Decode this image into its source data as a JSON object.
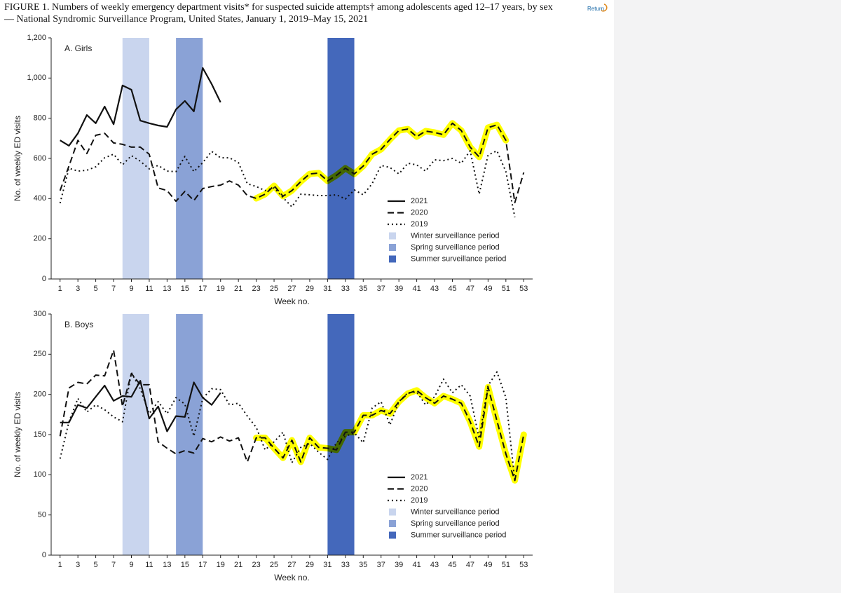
{
  "header": {
    "title": [
      "FIGURE 1. Numbers of weekly emergency department visits* for suspected suicide attempts† among adolescents aged 12–17 years, by sex",
      "— National Syndromic Surveillance Program, United States, January 1, 2019–May 15, 2021"
    ],
    "return_link": "Return"
  },
  "chart_data": [
    {
      "type": "line",
      "title": "A. Girls",
      "xlabel": "Week no.",
      "ylabel": "No. of weekly ED visits",
      "x": [
        1,
        2,
        3,
        4,
        5,
        6,
        7,
        8,
        9,
        10,
        11,
        12,
        13,
        14,
        15,
        16,
        17,
        18,
        19,
        20,
        21,
        22,
        23,
        24,
        25,
        26,
        27,
        28,
        29,
        30,
        31,
        32,
        33,
        34,
        35,
        36,
        37,
        38,
        39,
        40,
        41,
        42,
        43,
        44,
        45,
        46,
        47,
        48,
        49,
        50,
        51,
        52,
        53
      ],
      "xlim": [
        0,
        54
      ],
      "xticks": [
        1,
        3,
        5,
        7,
        9,
        11,
        13,
        15,
        17,
        19,
        21,
        23,
        25,
        27,
        29,
        31,
        33,
        35,
        37,
        39,
        41,
        43,
        45,
        47,
        49,
        51,
        53
      ],
      "ylim": [
        0,
        1200
      ],
      "yticks": [
        0,
        200,
        400,
        600,
        800,
        {
          "value": 1000,
          "label": "1,000"
        },
        {
          "value": 1200,
          "label": "1,200"
        }
      ],
      "bands": [
        {
          "name": "Winter surveillance period",
          "from": 8,
          "to": 11,
          "color": "#c9d5ee"
        },
        {
          "name": "Spring surveillance period",
          "from": 14,
          "to": 17,
          "color": "#8aa2d6"
        },
        {
          "name": "Summer surveillance period",
          "from": 31,
          "to": 34,
          "color": "#4468bb"
        }
      ],
      "series": [
        {
          "name": "2021",
          "color": "#111111",
          "dash": "solid",
          "values": [
            690,
            663,
            725,
            816,
            775,
            858,
            770,
            963,
            942,
            788,
            775,
            764,
            757,
            844,
            886,
            834,
            1050,
            970,
            879,
            null,
            null,
            null,
            null,
            null,
            null,
            null,
            null,
            null,
            null,
            null,
            null,
            null,
            null,
            null,
            null,
            null,
            null,
            null,
            null,
            null,
            null,
            null,
            null,
            null,
            null,
            null,
            null,
            null,
            null,
            null,
            null,
            null,
            null
          ]
        },
        {
          "name": "2020",
          "color": "#111111",
          "dash": "dashed",
          "highlight": {
            "from": 23,
            "to": 51,
            "color": "#ffff00"
          },
          "values": [
            440,
            562,
            690,
            624,
            715,
            725,
            677,
            670,
            656,
            656,
            621,
            453,
            440,
            387,
            436,
            390,
            450,
            460,
            467,
            488,
            467,
            415,
            401,
            422,
            464,
            412,
            440,
            485,
            523,
            527,
            488,
            516,
            551,
            523,
            562,
            621,
            645,
            694,
            739,
            746,
            708,
            736,
            729,
            718,
            775,
            739,
            656,
            607,
            753,
            767,
            690,
            380,
            530
          ]
        },
        {
          "name": "2019",
          "color": "#111111",
          "dash": "dotted",
          "values": [
            377,
            551,
            537,
            541,
            558,
            603,
            621,
            568,
            614,
            586,
            548,
            565,
            537,
            534,
            610,
            534,
            579,
            635,
            603,
            603,
            579,
            474,
            460,
            440,
            453,
            405,
            359,
            422,
            419,
            415,
            415,
            419,
            398,
            443,
            419,
            474,
            565,
            555,
            523,
            576,
            568,
            537,
            593,
            589,
            600,
            576,
            638,
            422,
            617,
            638,
            534,
            307,
            null
          ]
        }
      ]
    },
    {
      "type": "line",
      "title": "B. Boys",
      "xlabel": "Week no.",
      "ylabel": "No. of weekly ED visits",
      "x": [
        1,
        2,
        3,
        4,
        5,
        6,
        7,
        8,
        9,
        10,
        11,
        12,
        13,
        14,
        15,
        16,
        17,
        18,
        19,
        20,
        21,
        22,
        23,
        24,
        25,
        26,
        27,
        28,
        29,
        30,
        31,
        32,
        33,
        34,
        35,
        36,
        37,
        38,
        39,
        40,
        41,
        42,
        43,
        44,
        45,
        46,
        47,
        48,
        49,
        50,
        51,
        52,
        53
      ],
      "xlim": [
        0,
        54
      ],
      "xticks": [
        1,
        3,
        5,
        7,
        9,
        11,
        13,
        15,
        17,
        19,
        21,
        23,
        25,
        27,
        29,
        31,
        33,
        35,
        37,
        39,
        41,
        43,
        45,
        47,
        49,
        51,
        53
      ],
      "ylim": [
        0,
        300
      ],
      "yticks": [
        0,
        50,
        100,
        150,
        200,
        250,
        300
      ],
      "bands": [
        {
          "name": "Winter surveillance period",
          "from": 8,
          "to": 11,
          "color": "#c9d5ee"
        },
        {
          "name": "Spring surveillance period",
          "from": 14,
          "to": 17,
          "color": "#8aa2d6"
        },
        {
          "name": "Summer surveillance period",
          "from": 31,
          "to": 34,
          "color": "#4468bb"
        }
      ],
      "series": [
        {
          "name": "2021",
          "color": "#111111",
          "dash": "solid",
          "values": [
            165,
            165,
            187,
            183,
            197,
            211,
            192,
            198,
            197,
            217,
            170,
            185,
            154,
            173,
            172,
            215,
            196,
            187,
            202,
            null,
            null,
            null,
            null,
            null,
            null,
            null,
            null,
            null,
            null,
            null,
            null,
            null,
            null,
            null,
            null,
            null,
            null,
            null,
            null,
            null,
            null,
            null,
            null,
            null,
            null,
            null,
            null,
            null,
            null,
            null,
            null,
            null,
            null
          ]
        },
        {
          "name": "2020",
          "color": "#111111",
          "dash": "dashed",
          "highlight": {
            "from": 23,
            "to": 53,
            "color": "#ffff00"
          },
          "values": [
            148,
            208,
            215,
            213,
            224,
            223,
            255,
            185,
            226,
            212,
            212,
            141,
            133,
            126,
            130,
            127,
            145,
            141,
            147,
            142,
            146,
            116,
            146,
            146,
            133,
            121,
            143,
            116,
            146,
            134,
            133,
            131,
            153,
            153,
            174,
            174,
            180,
            176,
            191,
            201,
            205,
            196,
            189,
            198,
            194,
            189,
            166,
            135,
            209,
            167,
            126,
            93,
            150
          ]
        },
        {
          "name": "2019",
          "color": "#111111",
          "dash": "dotted",
          "values": [
            120,
            166,
            195,
            178,
            187,
            181,
            172,
            166,
            227,
            207,
            176,
            191,
            176,
            196,
            188,
            148,
            195,
            207,
            206,
            187,
            189,
            173,
            159,
            131,
            141,
            153,
            115,
            134,
            139,
            128,
            119,
            140,
            148,
            152,
            140,
            183,
            191,
            162,
            191,
            202,
            203,
            187,
            197,
            219,
            202,
            212,
            198,
            145,
            211,
            228,
            196,
            92,
            null
          ]
        }
      ]
    }
  ]
}
